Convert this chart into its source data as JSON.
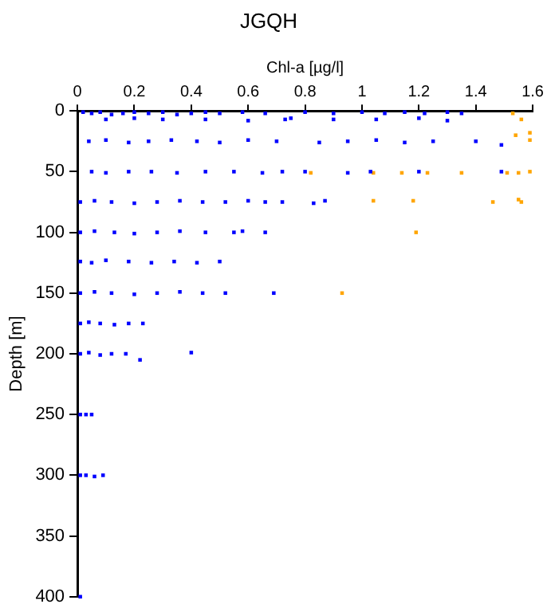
{
  "chart_data": {
    "type": "scatter",
    "title": "JGQH",
    "xlabel": "Chl-a [µg/l]",
    "ylabel": "Depth [m]",
    "xlim": [
      0,
      1.6
    ],
    "xticks": [
      0,
      0.2,
      0.4,
      0.6,
      0.8,
      1,
      1.2,
      1.4,
      1.6
    ],
    "ylim": [
      400,
      0
    ],
    "yticks": [
      0,
      50,
      100,
      150,
      200,
      250,
      300,
      350,
      400
    ],
    "grid": false,
    "legend": false,
    "marker": "square",
    "series": [
      {
        "color": "#0000ff",
        "x": [
          0.02,
          0.05,
          0.08,
          0.12,
          0.16,
          0.2,
          0.25,
          0.3,
          0.35,
          0.4,
          0.45,
          0.5,
          0.58,
          0.66,
          0.73,
          0.8,
          0.9,
          1.0,
          1.08,
          1.15,
          1.22,
          1.3,
          1.35,
          0.1,
          0.2,
          0.3,
          0.45,
          0.6,
          0.75,
          0.9,
          1.05,
          1.2,
          1.3,
          0.04,
          0.1,
          0.18,
          0.25,
          0.33,
          0.42,
          0.5,
          0.6,
          0.7,
          0.85,
          0.95,
          1.05,
          1.15,
          1.25,
          1.4,
          1.49,
          0.05,
          0.1,
          0.18,
          0.26,
          0.35,
          0.45,
          0.55,
          0.65,
          0.72,
          0.8,
          0.95,
          1.03,
          1.2,
          1.49,
          0.01,
          0.06,
          0.12,
          0.2,
          0.28,
          0.36,
          0.44,
          0.52,
          0.6,
          0.66,
          0.72,
          0.83,
          0.87,
          0.01,
          0.06,
          0.13,
          0.2,
          0.28,
          0.36,
          0.45,
          0.55,
          0.58,
          0.66,
          0.01,
          0.05,
          0.1,
          0.18,
          0.26,
          0.34,
          0.42,
          0.5,
          0.01,
          0.06,
          0.12,
          0.2,
          0.28,
          0.36,
          0.44,
          0.52,
          0.69,
          0.01,
          0.04,
          0.08,
          0.13,
          0.18,
          0.23,
          0.01,
          0.04,
          0.08,
          0.12,
          0.17,
          0.22,
          0.4,
          0.01,
          0.03,
          0.05,
          0.01,
          0.03,
          0.06,
          0.09,
          0.01
        ],
        "values": [
          1,
          2,
          1,
          3,
          2,
          1,
          2,
          1,
          3,
          2,
          1,
          2,
          1,
          2,
          7,
          1,
          2,
          1,
          2,
          1,
          2,
          1,
          2,
          7,
          6,
          7,
          7,
          8,
          6,
          7,
          7,
          6,
          8,
          25,
          24,
          26,
          25,
          24,
          25,
          26,
          24,
          25,
          26,
          25,
          24,
          26,
          25,
          25,
          28,
          50,
          51,
          50,
          50,
          51,
          50,
          50,
          51,
          50,
          50,
          51,
          50,
          50,
          50,
          75,
          74,
          75,
          76,
          75,
          74,
          75,
          75,
          74,
          75,
          75,
          76,
          74,
          100,
          99,
          100,
          101,
          100,
          99,
          100,
          100,
          99,
          100,
          124,
          125,
          123,
          124,
          125,
          124,
          125,
          124,
          150,
          149,
          150,
          151,
          150,
          149,
          150,
          150,
          150,
          175,
          174,
          175,
          176,
          175,
          175,
          200,
          199,
          201,
          200,
          200,
          205,
          199,
          250,
          250,
          250,
          300,
          300,
          301,
          300,
          400
        ]
      },
      {
        "color": "#ffa500",
        "x": [
          1.53,
          1.56,
          1.54,
          1.59,
          1.59,
          0.82,
          1.04,
          1.14,
          1.23,
          1.35,
          1.51,
          1.55,
          1.59,
          1.04,
          1.18,
          1.46,
          1.55,
          1.56,
          1.19,
          0.93
        ],
        "values": [
          2,
          7,
          20,
          18,
          24,
          51,
          51,
          51,
          51,
          51,
          51,
          51,
          50,
          74,
          74,
          75,
          73,
          75,
          100,
          150
        ]
      }
    ]
  }
}
